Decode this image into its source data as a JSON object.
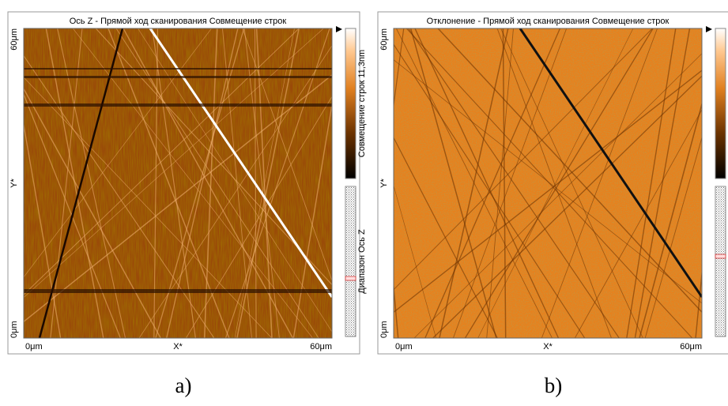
{
  "panels": [
    {
      "title": "Ось Z - Прямой ход сканирования   Совмещение строк",
      "x_axis": {
        "start": "0μm",
        "label": "X*",
        "end": "60μm"
      },
      "y_axis": {
        "start": "0μm",
        "label": "Y*",
        "end": "60μm"
      },
      "side_labels": [
        "Совмещение строк 11,3nm",
        "Диапазон Ось Z"
      ],
      "caption": "a)"
    },
    {
      "title": "Отклонение - Прямой ход сканирования   Совмещение строк",
      "x_axis": {
        "start": "0μm",
        "label": "X*",
        "end": "60μm"
      },
      "y_axis": {
        "start": "0μm",
        "label": "Y*",
        "end": "60μm"
      },
      "caption": "b)"
    }
  ]
}
